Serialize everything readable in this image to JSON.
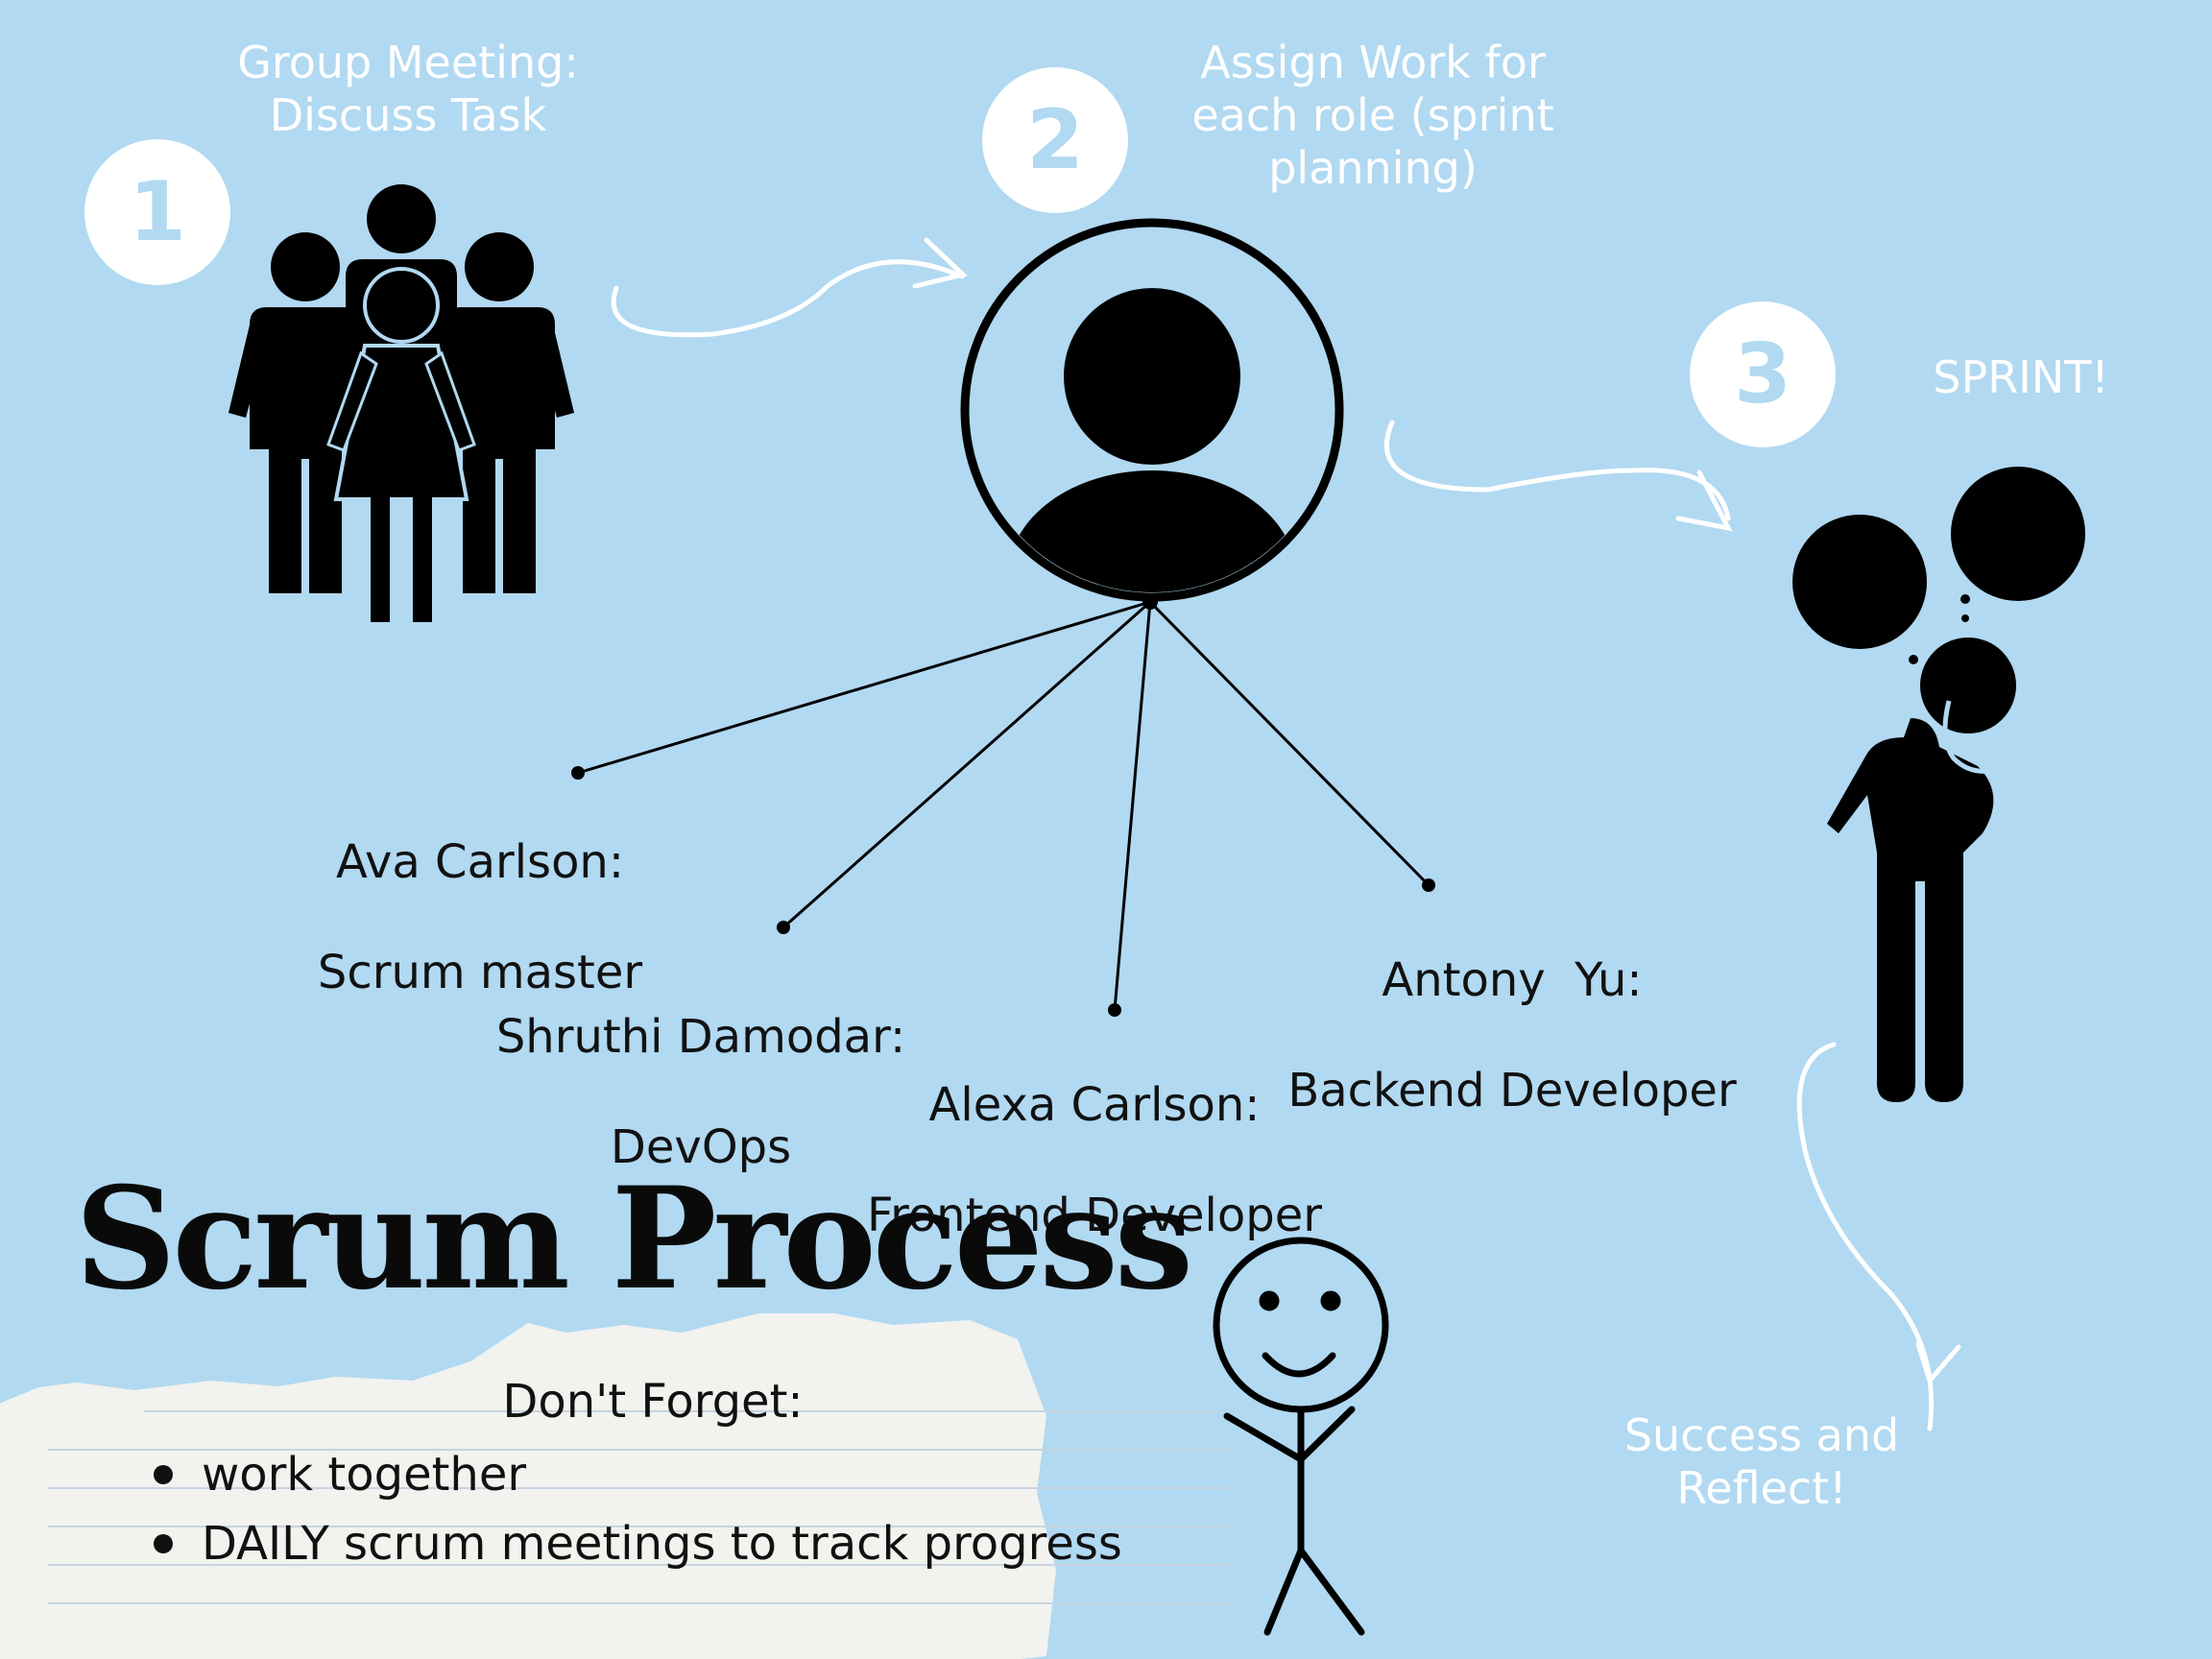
{
  "title": "Scrum Process",
  "steps": [
    {
      "number": "1",
      "label": "Group Meeting:\nDiscuss Task"
    },
    {
      "number": "2",
      "label": "Assign Work for\neach role (sprint\nplanning)"
    },
    {
      "number": "3",
      "label": "SPRINT!"
    }
  ],
  "final_step": "Success and\nReflect!",
  "team": [
    {
      "name": "Ava Carlson:",
      "role": "Scrum master"
    },
    {
      "name": "Shruthi Damodar:",
      "role": "DevOps"
    },
    {
      "name": "Alexa Carlson:",
      "role": "Frontend Developer"
    },
    {
      "name": "Antony  Yu:",
      "role": "Backend Developer"
    }
  ],
  "note": {
    "title": "Don't Forget:",
    "items": [
      "work together",
      "DAILY scrum meetings to track progress"
    ]
  },
  "icons": [
    "group-people-icon",
    "user-avatar-icon",
    "thinking-person-icon",
    "smiley-stick-figure-icon"
  ],
  "colors": {
    "background": "#b1d9f1",
    "badge": "#ffffff",
    "ink": "#000000",
    "note_paper": "#f2f2ef"
  }
}
